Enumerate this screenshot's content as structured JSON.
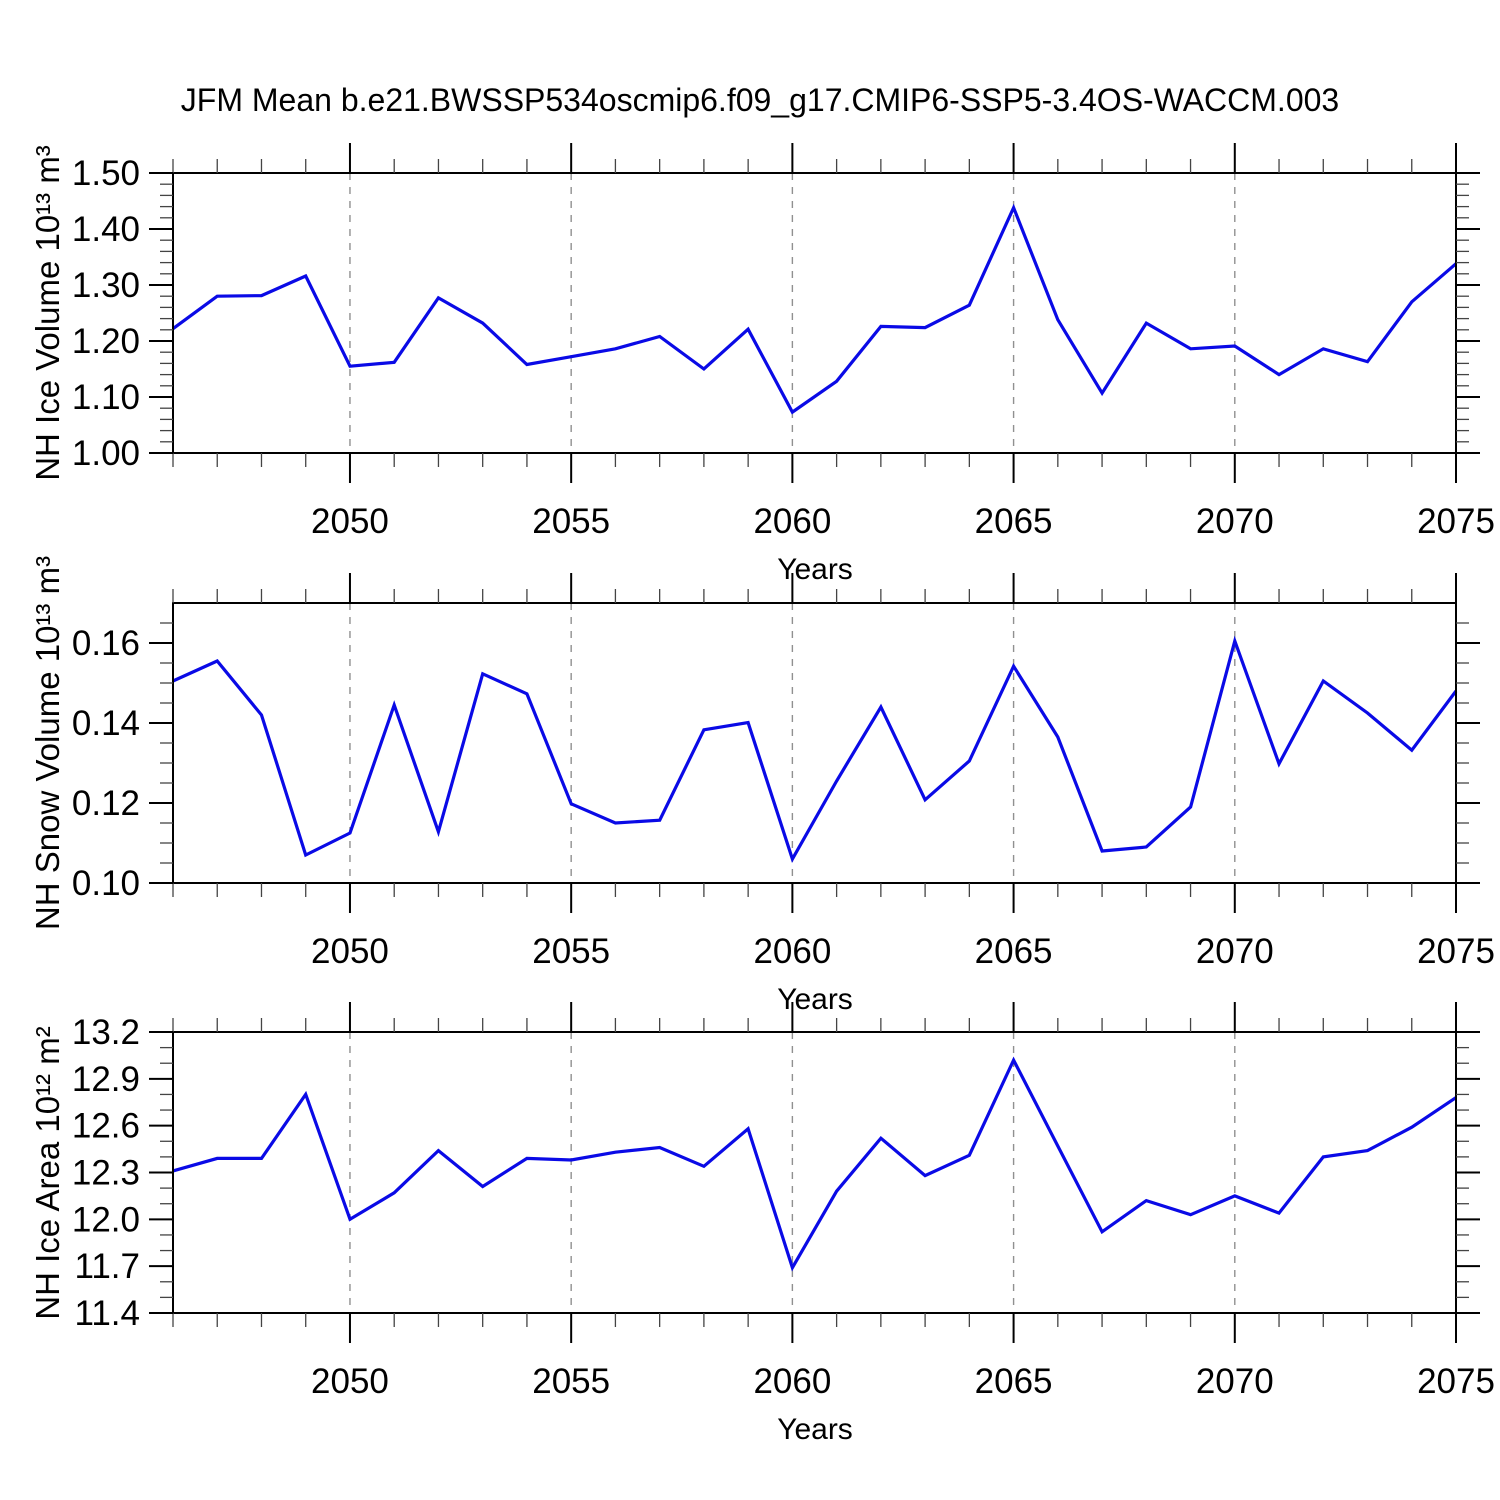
{
  "title": "JFM Mean b.e21.BWSSP534oscmip6.f09_g17.CMIP6-SSP5-3.4OS-WACCM.003",
  "colors": {
    "line": "#0a0ae6",
    "grid": "#909090",
    "frame": "#000000",
    "tick_major": "#000000",
    "tick_minor": "#444444",
    "text": "#000000",
    "background": "#ffffff"
  },
  "chart_data": [
    {
      "type": "line",
      "title": "",
      "ylabel": "NH Ice Volume 10¹³ m³",
      "xlabel": "Years",
      "legend": "none",
      "grid": "vertical-dashed",
      "x": [
        2046,
        2047,
        2048,
        2049,
        2050,
        2051,
        2052,
        2053,
        2054,
        2055,
        2056,
        2057,
        2058,
        2059,
        2060,
        2061,
        2062,
        2063,
        2064,
        2065,
        2066,
        2067,
        2068,
        2069,
        2070,
        2071,
        2072,
        2073,
        2074,
        2075
      ],
      "values": [
        1.222,
        1.28,
        1.281,
        1.316,
        1.155,
        1.162,
        1.277,
        1.232,
        1.158,
        1.172,
        1.186,
        1.208,
        1.15,
        1.221,
        1.073,
        1.128,
        1.226,
        1.224,
        1.264,
        1.438,
        1.238,
        1.107,
        1.232,
        1.186,
        1.191,
        1.14,
        1.186,
        1.163,
        1.27,
        1.338
      ],
      "xlim": [
        2046,
        2075
      ],
      "ylim": [
        1.0,
        1.5
      ],
      "xtick_values": [
        2050,
        2055,
        2060,
        2065,
        2070,
        2075
      ],
      "xtick_labels": [
        "2050",
        "2055",
        "2060",
        "2065",
        "2070",
        "2075"
      ],
      "xtick_minor_step": 1,
      "ytick_values": [
        1.0,
        1.1,
        1.2,
        1.3,
        1.4,
        1.5
      ],
      "ytick_labels": [
        "1.00",
        "1.10",
        "1.20",
        "1.30",
        "1.40",
        "1.50"
      ],
      "ytick_minor_step": 0.02,
      "grid_x": [
        2050,
        2055,
        2060,
        2065,
        2070
      ]
    },
    {
      "type": "line",
      "title": "",
      "ylabel": "NH Snow Volume 10¹³ m³",
      "xlabel": "Years",
      "legend": "none",
      "grid": "vertical-dashed",
      "x": [
        2046,
        2047,
        2048,
        2049,
        2050,
        2051,
        2052,
        2053,
        2054,
        2055,
        2056,
        2057,
        2058,
        2059,
        2060,
        2061,
        2062,
        2063,
        2064,
        2065,
        2066,
        2067,
        2068,
        2069,
        2070,
        2071,
        2072,
        2073,
        2074,
        2075
      ],
      "values": [
        0.1505,
        0.1555,
        0.142,
        0.107,
        0.1125,
        0.1445,
        0.1128,
        0.1523,
        0.1473,
        0.1198,
        0.115,
        0.1157,
        0.1383,
        0.1401,
        0.106,
        0.1255,
        0.144,
        0.1208,
        0.1305,
        0.1542,
        0.1365,
        0.108,
        0.109,
        0.119,
        0.1605,
        0.1298,
        0.1505,
        0.1425,
        0.1332,
        0.148
      ],
      "xlim": [
        2046,
        2075
      ],
      "ylim": [
        0.1,
        0.17
      ],
      "xtick_values": [
        2050,
        2055,
        2060,
        2065,
        2070,
        2075
      ],
      "xtick_labels": [
        "2050",
        "2055",
        "2060",
        "2065",
        "2070",
        "2075"
      ],
      "xtick_minor_step": 1,
      "ytick_values": [
        0.1,
        0.12,
        0.14,
        0.16
      ],
      "ytick_labels": [
        "0.10",
        "0.12",
        "0.14",
        "0.16"
      ],
      "ytick_minor_step": 0.005,
      "grid_x": [
        2050,
        2055,
        2060,
        2065,
        2070
      ]
    },
    {
      "type": "line",
      "title": "",
      "ylabel": "NH Ice Area 10¹² m²",
      "xlabel": "Years",
      "legend": "none",
      "grid": "vertical-dashed",
      "x": [
        2046,
        2047,
        2048,
        2049,
        2050,
        2051,
        2052,
        2053,
        2054,
        2055,
        2056,
        2057,
        2058,
        2059,
        2060,
        2061,
        2062,
        2063,
        2064,
        2065,
        2066,
        2067,
        2068,
        2069,
        2070,
        2071,
        2072,
        2073,
        2074,
        2075
      ],
      "values": [
        12.31,
        12.39,
        12.39,
        12.8,
        12.0,
        12.17,
        12.44,
        12.21,
        12.39,
        12.38,
        12.43,
        12.46,
        12.34,
        12.58,
        11.69,
        12.18,
        12.52,
        12.28,
        12.41,
        13.02,
        12.47,
        11.92,
        12.12,
        12.03,
        12.15,
        12.04,
        12.4,
        12.44,
        12.59,
        12.78
      ],
      "xlim": [
        2046,
        2075
      ],
      "ylim": [
        11.4,
        13.2
      ],
      "xtick_values": [
        2050,
        2055,
        2060,
        2065,
        2070,
        2075
      ],
      "xtick_labels": [
        "2050",
        "2055",
        "2060",
        "2065",
        "2070",
        "2075"
      ],
      "xtick_minor_step": 1,
      "ytick_values": [
        11.4,
        11.7,
        12.0,
        12.3,
        12.6,
        12.9,
        13.2
      ],
      "ytick_labels": [
        "11.4",
        "11.7",
        "12.0",
        "12.3",
        "12.6",
        "12.9",
        "13.2"
      ],
      "ytick_minor_step": 0.1,
      "grid_x": [
        2050,
        2055,
        2060,
        2065,
        2070
      ]
    }
  ]
}
